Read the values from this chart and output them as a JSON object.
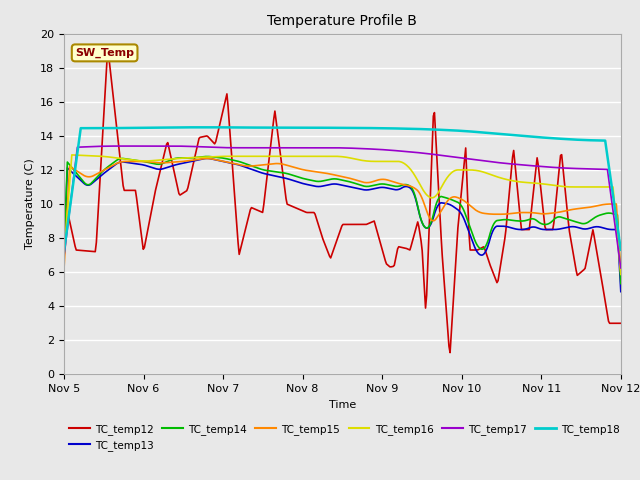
{
  "title": "Temperature Profile B",
  "xlabel": "Time",
  "ylabel": "Temperature (C)",
  "ylim": [
    0,
    20
  ],
  "xlim": [
    0,
    7
  ],
  "xtick_labels": [
    "Nov 5",
    "Nov 6",
    "Nov 7",
    "Nov 8",
    "Nov 9",
    "Nov 10",
    "Nov 11",
    "Nov 12"
  ],
  "xtick_positions": [
    0,
    1,
    2,
    3,
    4,
    5,
    6,
    7
  ],
  "ytick_labels": [
    "0",
    "2",
    "4",
    "6",
    "8",
    "10",
    "12",
    "14",
    "16",
    "18",
    "20"
  ],
  "ytick_positions": [
    0,
    2,
    4,
    6,
    8,
    10,
    12,
    14,
    16,
    18,
    20
  ],
  "background_color": "#e8e8e8",
  "plot_bg_color": "#e8e8e8",
  "sw_temp_label": "SW_Temp",
  "series": {
    "TC_temp12": {
      "color": "#cc0000",
      "lw": 1.2
    },
    "TC_temp13": {
      "color": "#0000cc",
      "lw": 1.2
    },
    "TC_temp14": {
      "color": "#00bb00",
      "lw": 1.2
    },
    "TC_temp15": {
      "color": "#ff8800",
      "lw": 1.2
    },
    "TC_temp16": {
      "color": "#dddd00",
      "lw": 1.2
    },
    "TC_temp17": {
      "color": "#9900cc",
      "lw": 1.2
    },
    "TC_temp18": {
      "color": "#00cccc",
      "lw": 1.8
    }
  },
  "legend_order": [
    "TC_temp12",
    "TC_temp13",
    "TC_temp14",
    "TC_temp15",
    "TC_temp16",
    "TC_temp17",
    "TC_temp18"
  ]
}
